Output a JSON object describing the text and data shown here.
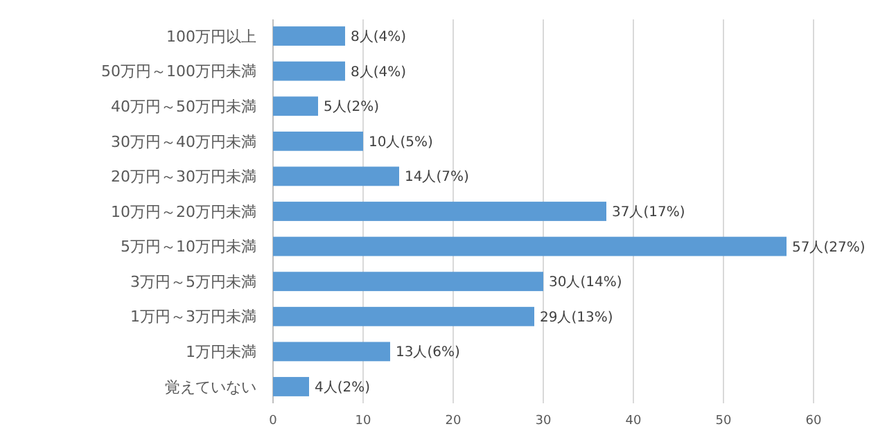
{
  "chart_data": {
    "type": "bar",
    "orientation": "horizontal",
    "categories": [
      "100万円以上",
      "50万円～100万円未満",
      "40万円～50万円未満",
      "30万円～40万円未満",
      "20万円～30万円未満",
      "10万円～20万円未満",
      "5万円～10万円未満",
      "3万円～5万円未満",
      "1万円～3万円未満",
      "1万円未満",
      "覚えていない"
    ],
    "values": [
      8,
      8,
      5,
      10,
      14,
      37,
      57,
      30,
      29,
      13,
      4
    ],
    "value_labels": [
      "8人(4%)",
      "8人(4%)",
      "5人(2%)",
      "10人(5%)",
      "14人(7%)",
      "37人(17%)",
      "57人(27%)",
      "30人(14%)",
      "29人(13%)",
      "13人(6%)",
      "4人(2%)"
    ],
    "color": "#5b9bd5",
    "xlim": [
      0,
      60
    ],
    "xticks": [
      0,
      10,
      20,
      30,
      40,
      50,
      60
    ],
    "grid": "x"
  }
}
